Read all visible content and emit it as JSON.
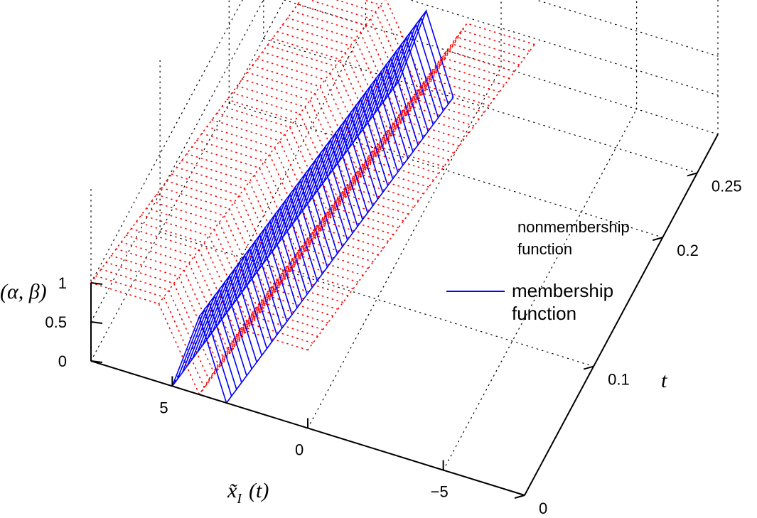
{
  "chart_data": {
    "type": "surface-3d",
    "title": "",
    "zlabel": "(α, β)",
    "xlabel_base": "x̃",
    "xlabel_sub": "I",
    "xlabel_arg": "(t)",
    "tlabel": "t",
    "x_ticks": [
      "5",
      "0",
      "−5"
    ],
    "x_tick_values": [
      5,
      0,
      -5
    ],
    "t_ticks": [
      "0",
      "0.1",
      "0.2",
      "0.25"
    ],
    "t_tick_values": [
      0,
      0.1,
      0.2,
      0.25
    ],
    "z_ticks": [
      "0",
      "0.5",
      "1"
    ],
    "z_tick_values": [
      0,
      0.5,
      1
    ],
    "x_range": [
      -8,
      8
    ],
    "t_range": [
      0,
      0.28
    ],
    "z_range": [
      0,
      1
    ],
    "grid": "on",
    "legend_position": "right",
    "series": [
      {
        "name_line1": "nonmembership",
        "name_line2": "function",
        "color": "#ff0000",
        "style": "dotted",
        "shape": "inverted-triangle",
        "center_start": 4,
        "center_slope": -8,
        "left_spread": 1.5,
        "right_spread": 1.5
      },
      {
        "name_line1": "membership",
        "name_line2": "function",
        "color": "#0000ff",
        "style": "solid",
        "shape": "triangle",
        "center_start": 4,
        "center_slope": -8,
        "left_spread": 1.0,
        "right_spread": 1.0
      }
    ]
  }
}
